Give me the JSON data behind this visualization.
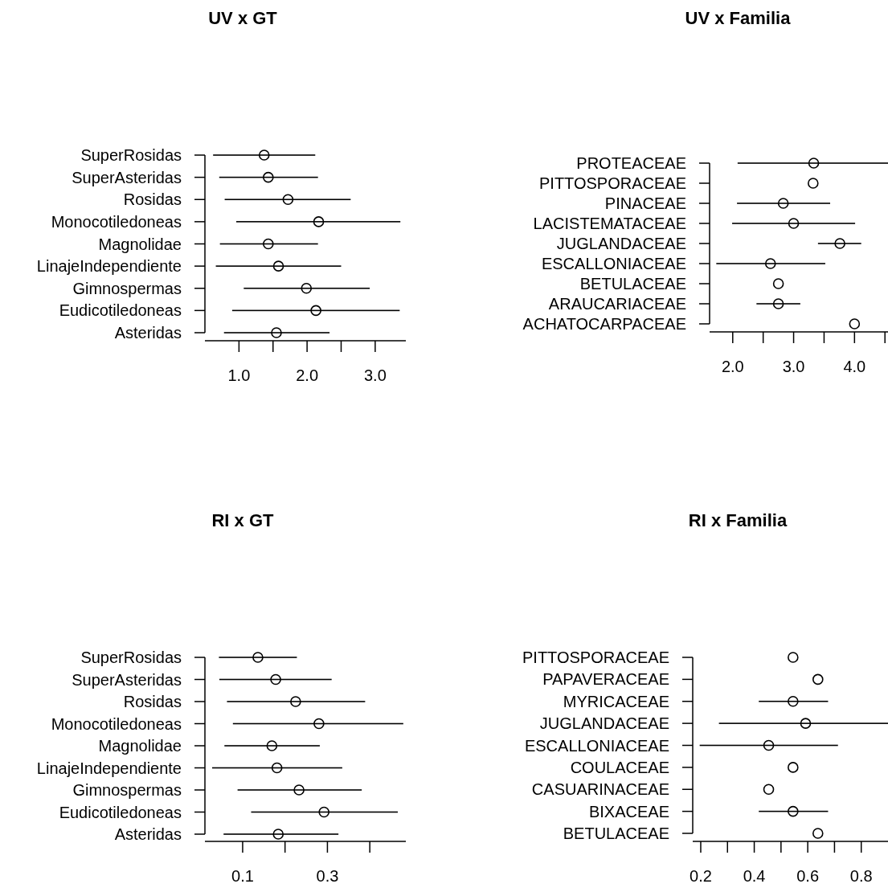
{
  "chart_data": [
    {
      "type": "scatter",
      "title": "UV x GT",
      "orientation": "horizontal",
      "marker": "circle",
      "categories": [
        "SuperRosidas",
        "SuperAsteridas",
        "Rosidas",
        "Monocotiledoneas",
        "Magnolidae",
        "LinajeIndependiente",
        "Gimnospermas",
        "Eudicotiledoneas",
        "Asteridas"
      ],
      "values": [
        1.37,
        1.43,
        1.72,
        2.17,
        1.43,
        1.58,
        1.99,
        2.13,
        1.55
      ],
      "errors": [
        [
          0.62,
          2.12
        ],
        [
          0.71,
          2.16
        ],
        [
          0.79,
          2.64
        ],
        [
          0.96,
          3.37
        ],
        [
          0.72,
          2.16
        ],
        [
          0.66,
          2.5
        ],
        [
          1.07,
          2.92
        ],
        [
          0.9,
          3.36
        ],
        [
          0.78,
          2.33
        ]
      ],
      "color": "#000000",
      "xlim": [
        0.5,
        3.45
      ],
      "xticks": [
        {
          "value": 1,
          "label": "1.0"
        },
        {
          "value": 1.5,
          "label": null
        },
        {
          "value": 2.0,
          "label": "2.0"
        },
        {
          "value": 2.5,
          "label": null
        },
        {
          "value": 3.0,
          "label": "3.0"
        }
      ]
    },
    {
      "type": "scatter",
      "title": "UV x Familia",
      "orientation": "horizontal",
      "marker": "circle",
      "categories": [
        "PROTEACEAE",
        "PITTOSPORACEAE",
        "PINACEAE",
        "LACISTEMATACEAE",
        "JUGLANDACEAE",
        "ESCALLONIACEAE",
        "BETULACEAE",
        "ARAUCARIACEAE",
        "ACHATOCARPACEAE"
      ],
      "values": [
        3.33,
        3.32,
        2.83,
        3.0,
        3.76,
        2.62,
        2.75,
        2.75,
        4.0
      ],
      "errors": [
        [
          2.08,
          4.55
        ],
        null,
        [
          2.07,
          3.6
        ],
        [
          1.99,
          4.01
        ],
        [
          3.4,
          4.11
        ],
        [
          1.73,
          3.52
        ],
        null,
        [
          2.39,
          3.11
        ],
        null
      ],
      "color": "#000000",
      "xlim": [
        1.62,
        4.55
      ],
      "xticks": [
        {
          "value": 2.0,
          "label": "2.0"
        },
        {
          "value": 2.5,
          "label": null
        },
        {
          "value": 3.0,
          "label": "3.0"
        },
        {
          "value": 3.5,
          "label": null
        },
        {
          "value": 4.0,
          "label": "4.0"
        },
        {
          "value": 4.5,
          "label": null
        }
      ]
    },
    {
      "type": "scatter",
      "title": "RI x GT",
      "orientation": "horizontal",
      "marker": "circle",
      "categories": [
        "SuperRosidas",
        "SuperAsteridas",
        "Rosidas",
        "Monocotiledoneas",
        "Magnolidae",
        "LinajeIndependiente",
        "Gimnospermas",
        "Eudicotiledoneas",
        "Asteridas"
      ],
      "values": [
        0.136,
        0.178,
        0.225,
        0.28,
        0.169,
        0.181,
        0.233,
        0.292,
        0.184
      ],
      "errors": [
        [
          0.044,
          0.228
        ],
        [
          0.045,
          0.31
        ],
        [
          0.063,
          0.389
        ],
        [
          0.077,
          0.479
        ],
        [
          0.057,
          0.282
        ],
        [
          0.028,
          0.335
        ],
        [
          0.088,
          0.381
        ],
        [
          0.12,
          0.466
        ],
        [
          0.055,
          0.326
        ]
      ],
      "color": "#000000",
      "xlim": [
        0.011,
        0.485
      ],
      "xticks": [
        0.1,
        {
          "value": 0.2,
          "label": null
        },
        0.3,
        {
          "value": 0.4,
          "label": null
        }
      ]
    },
    {
      "type": "scatter",
      "title": "RI x Familia",
      "orientation": "horizontal",
      "marker": "circle",
      "categories": [
        "PITTOSPORACEAE",
        "PAPAVERACEAE",
        "MYRICACEAE",
        "JUGLANDACEAE",
        "ESCALLONIACEAE",
        "COULACEAE",
        "CASUARINACEAE",
        "BIXACEAE",
        "BETULACEAE"
      ],
      "values": [
        0.545,
        0.638,
        0.545,
        0.592,
        0.454,
        0.545,
        0.454,
        0.545,
        0.638
      ],
      "errors": [
        null,
        null,
        [
          0.417,
          0.676
        ],
        [
          0.268,
          0.9
        ],
        [
          0.196,
          0.713
        ],
        null,
        null,
        [
          0.417,
          0.676
        ],
        null
      ],
      "color": "#000000",
      "xlim": [
        0.17,
        0.9
      ],
      "xticks": [
        0.2,
        {
          "value": 0.3,
          "label": null
        },
        0.4,
        {
          "value": 0.5,
          "label": null
        },
        0.6,
        {
          "value": 0.7,
          "label": null
        },
        0.8
      ]
    }
  ]
}
